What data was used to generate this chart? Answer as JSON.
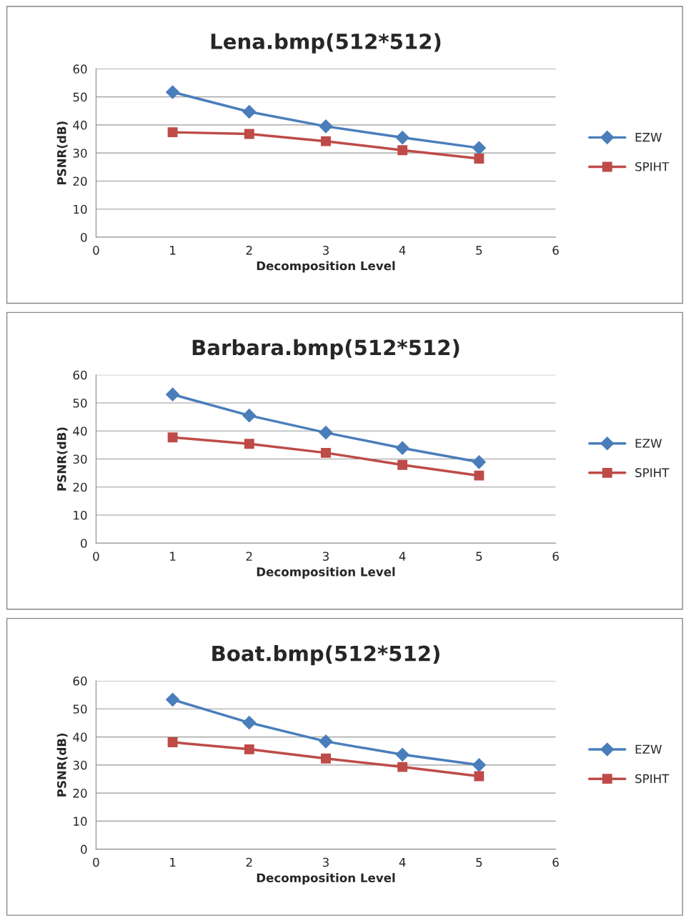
{
  "chart_data": [
    {
      "type": "line",
      "title": "Lena.bmp(512*512)",
      "xlabel": "Decomposition Level",
      "ylabel": "PSNR(dB)",
      "x": [
        1,
        2,
        3,
        4,
        5
      ],
      "xlim": [
        0,
        6
      ],
      "xticks": [
        0,
        1,
        2,
        3,
        4,
        5,
        6
      ],
      "ylim": [
        0,
        60
      ],
      "yticks": [
        0,
        10,
        20,
        30,
        40,
        50,
        60
      ],
      "grid": "y",
      "legend": "right",
      "series": [
        {
          "name": "EZW",
          "color": "#4a7ebb",
          "marker": "diamond",
          "values": [
            51.7,
            44.7,
            39.5,
            35.5,
            31.8
          ]
        },
        {
          "name": "SPIHT",
          "color": "#be4b48",
          "marker": "square",
          "values": [
            37.4,
            36.8,
            34.2,
            31.0,
            28.0
          ]
        }
      ]
    },
    {
      "type": "line",
      "title": "Barbara.bmp(512*512)",
      "xlabel": "Decomposition Level",
      "ylabel": "PSNR(dB)",
      "x": [
        1,
        2,
        3,
        4,
        5
      ],
      "xlim": [
        0,
        6
      ],
      "xticks": [
        0,
        1,
        2,
        3,
        4,
        5,
        6
      ],
      "ylim": [
        0,
        60
      ],
      "yticks": [
        0,
        10,
        20,
        30,
        40,
        50,
        60
      ],
      "grid": "y",
      "legend": "right",
      "series": [
        {
          "name": "EZW",
          "color": "#4a7ebb",
          "marker": "diamond",
          "values": [
            53.0,
            45.5,
            39.4,
            33.9,
            28.9
          ]
        },
        {
          "name": "SPIHT",
          "color": "#be4b48",
          "marker": "square",
          "values": [
            37.7,
            35.4,
            32.2,
            27.9,
            24.1
          ]
        }
      ]
    },
    {
      "type": "line",
      "title": "Boat.bmp(512*512)",
      "xlabel": "Decomposition Level",
      "ylabel": "PSNR(dB)",
      "x": [
        1,
        2,
        3,
        4,
        5
      ],
      "xlim": [
        0,
        6
      ],
      "xticks": [
        0,
        1,
        2,
        3,
        4,
        5,
        6
      ],
      "ylim": [
        0,
        60
      ],
      "yticks": [
        0,
        10,
        20,
        30,
        40,
        50,
        60
      ],
      "grid": "y",
      "legend": "right",
      "series": [
        {
          "name": "EZW",
          "color": "#4a7ebb",
          "marker": "diamond",
          "values": [
            53.3,
            45.1,
            38.4,
            33.7,
            30.0
          ]
        },
        {
          "name": "SPIHT",
          "color": "#be4b48",
          "marker": "square",
          "values": [
            38.1,
            35.6,
            32.3,
            29.3,
            26.0
          ]
        }
      ]
    }
  ]
}
